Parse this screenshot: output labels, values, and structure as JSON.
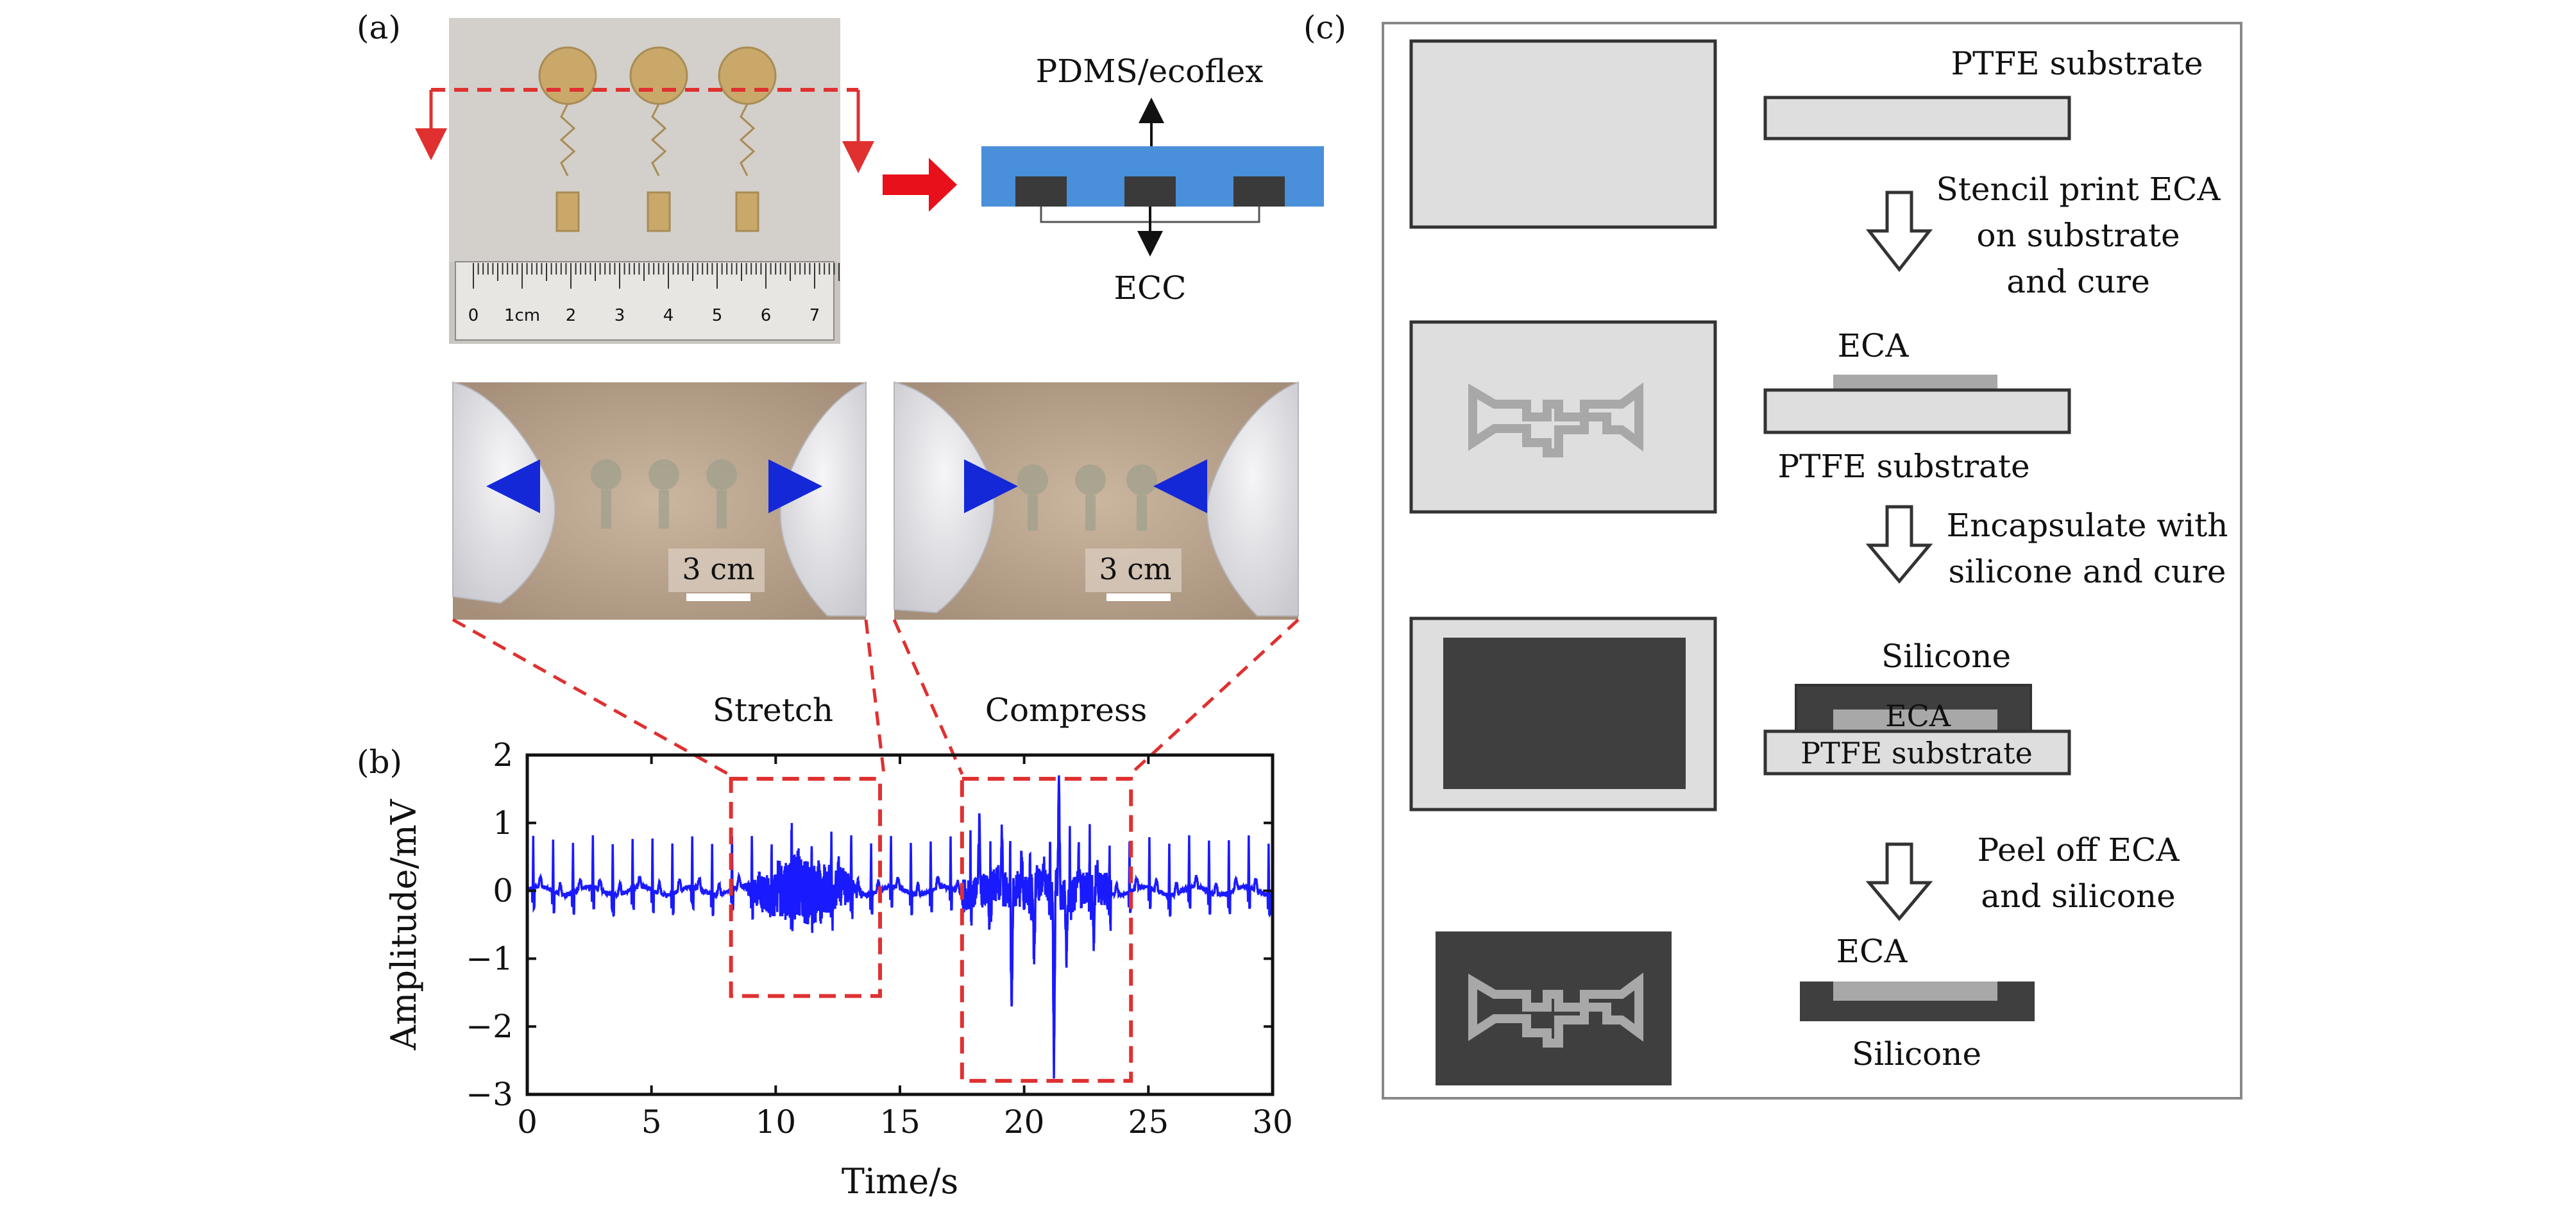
{
  "panel_a": {
    "label": "(a)",
    "layer_top_label": "PDMS/ecoflex",
    "layer_bottom_label": "ECC",
    "ruler_ticks": [
      "0",
      "1cm",
      "2",
      "3",
      "4",
      "5",
      "6",
      "7"
    ],
    "stretch_scale": "3 cm",
    "compress_scale": "3 cm",
    "stretch_label": "Stretch",
    "compress_label": "Compress"
  },
  "panel_b": {
    "label": "(b)"
  },
  "panel_c": {
    "label": "(c)",
    "step1_label": "PTFE substrate",
    "arrow1_text": [
      "Stencil print ECA",
      "on substrate",
      "and cure"
    ],
    "step2_top": "ECA",
    "step2_bottom": "PTFE substrate",
    "arrow2_text": [
      "Encapsulate with",
      "silicone and cure"
    ],
    "step3_top": "Silicone",
    "step3_mid": "ECA",
    "step3_bottom": "PTFE substrate",
    "arrow3_text": [
      "Peel off ECA",
      "and silicone"
    ],
    "step4_top": "ECA",
    "step4_bottom": "Silicone"
  },
  "colors": {
    "signal": "#1a1aff",
    "highlight_box": "#e03030",
    "layer_blue": "#4a8fd9",
    "electrode": "#3a3a3a",
    "ptfe_fill": "#d9d9d9",
    "silicone_fill": "#3f3f3f",
    "eca_fill": "#a8a8a8"
  },
  "chart_data": {
    "type": "line",
    "title": "",
    "xlabel": "Time/s",
    "ylabel": "Amplitude/mV",
    "xlim": [
      0,
      30
    ],
    "ylim": [
      -3,
      2
    ],
    "xticks": [
      0,
      5,
      10,
      15,
      20,
      25,
      30
    ],
    "yticks": [
      -3,
      -2,
      -1,
      0,
      1,
      2
    ],
    "grid": false,
    "beat_interval_s": 0.8,
    "baseline_mv": 0.0,
    "r_peak_mv": 0.75,
    "highlight_regions": [
      {
        "name": "Stretch",
        "x": [
          8.2,
          14.2
        ],
        "y": [
          -1.55,
          1.65
        ]
      },
      {
        "name": "Compress",
        "x": [
          17.5,
          24.3
        ],
        "y": [
          -2.8,
          1.65
        ]
      }
    ],
    "stretch_noise": {
      "x": [
        8.6,
        13.6
      ],
      "amplitude_mv": 0.5
    },
    "compress_artifact": {
      "x": [
        17.5,
        23.5
      ],
      "max_mv": 1.7,
      "min_mv": -2.8
    }
  }
}
